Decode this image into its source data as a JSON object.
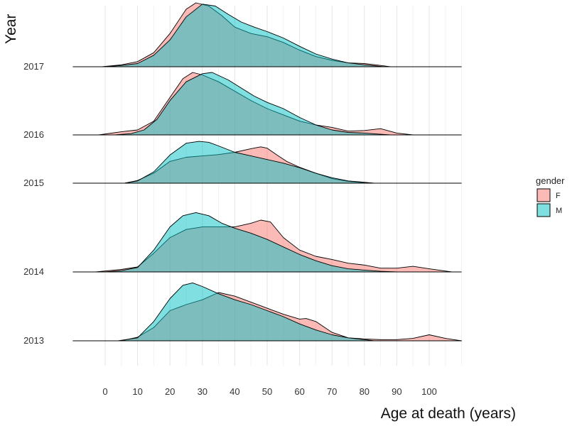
{
  "chart_data": {
    "type": "area",
    "subtype": "ridgeline-density",
    "xlabel": "Age at death (years)",
    "ylabel": "Year",
    "xlim": [
      -10,
      110
    ],
    "x_ticks": [
      0,
      10,
      20,
      30,
      40,
      50,
      60,
      70,
      80,
      90,
      100
    ],
    "grid": true,
    "legend": {
      "title": "gender",
      "position": "right"
    },
    "rows": [
      "2017",
      "2016",
      "2015",
      "2014",
      "2013"
    ],
    "series": [
      {
        "name": "F",
        "color": "#F8766D"
      },
      {
        "name": "M",
        "color": "#00BFC4"
      }
    ],
    "densities": {
      "2017": {
        "F": {
          "x": [
            -1,
            5,
            10,
            15,
            20,
            25,
            28,
            32,
            36,
            40,
            45,
            50,
            55,
            60,
            65,
            70,
            75,
            80,
            85,
            88
          ],
          "y": [
            0.0,
            0.03,
            0.08,
            0.22,
            0.52,
            0.9,
            1.0,
            0.95,
            0.8,
            0.62,
            0.52,
            0.47,
            0.38,
            0.26,
            0.16,
            0.1,
            0.06,
            0.05,
            0.02,
            0.0
          ]
        },
        "M": {
          "x": [
            0,
            5,
            10,
            15,
            20,
            25,
            30,
            34,
            38,
            42,
            46,
            50,
            55,
            60,
            65,
            70,
            75,
            80,
            86
          ],
          "y": [
            0.0,
            0.02,
            0.05,
            0.18,
            0.42,
            0.78,
            0.98,
            0.95,
            0.82,
            0.7,
            0.62,
            0.55,
            0.45,
            0.32,
            0.2,
            0.12,
            0.06,
            0.03,
            0.0
          ]
        }
      },
      "2016": {
        "F": {
          "x": [
            -2,
            5,
            10,
            15,
            20,
            24,
            27,
            30,
            35,
            40,
            45,
            50,
            55,
            60,
            65,
            70,
            75,
            80,
            85,
            90,
            95
          ],
          "y": [
            0.0,
            0.05,
            0.08,
            0.22,
            0.6,
            0.9,
            1.0,
            0.96,
            0.85,
            0.7,
            0.55,
            0.42,
            0.32,
            0.22,
            0.16,
            0.12,
            0.06,
            0.07,
            0.1,
            0.03,
            0.0
          ]
        },
        "M": {
          "x": [
            3,
            8,
            12,
            16,
            20,
            25,
            30,
            33,
            38,
            42,
            46,
            50,
            55,
            60,
            65,
            70,
            75,
            80,
            85,
            88
          ],
          "y": [
            0.0,
            0.02,
            0.08,
            0.25,
            0.55,
            0.85,
            0.98,
            1.0,
            0.88,
            0.75,
            0.62,
            0.52,
            0.42,
            0.28,
            0.16,
            0.08,
            0.04,
            0.03,
            0.01,
            0.0
          ]
        }
      },
      "2015": {
        "F": {
          "x": [
            6,
            10,
            15,
            20,
            25,
            30,
            35,
            40,
            45,
            48,
            50,
            53,
            56,
            60,
            65,
            70,
            75,
            80,
            83
          ],
          "y": [
            0.0,
            0.06,
            0.22,
            0.48,
            0.57,
            0.6,
            0.63,
            0.68,
            0.76,
            0.8,
            0.77,
            0.62,
            0.48,
            0.35,
            0.22,
            0.1,
            0.04,
            0.01,
            0.0
          ]
        },
        "M": {
          "x": [
            6,
            10,
            15,
            20,
            25,
            29,
            32,
            35,
            40,
            45,
            50,
            55,
            60,
            65,
            70,
            75,
            80,
            83
          ],
          "y": [
            0.0,
            0.05,
            0.25,
            0.62,
            0.88,
            0.92,
            0.9,
            0.82,
            0.68,
            0.6,
            0.52,
            0.44,
            0.34,
            0.22,
            0.12,
            0.05,
            0.02,
            0.0
          ]
        }
      },
      "2014": {
        "F": {
          "x": [
            -3,
            5,
            10,
            15,
            20,
            25,
            30,
            35,
            40,
            45,
            48,
            51,
            55,
            60,
            65,
            70,
            75,
            80,
            85,
            90,
            95,
            100,
            107
          ],
          "y": [
            0.0,
            0.04,
            0.08,
            0.3,
            0.55,
            0.68,
            0.72,
            0.72,
            0.72,
            0.78,
            0.83,
            0.8,
            0.55,
            0.35,
            0.25,
            0.2,
            0.14,
            0.11,
            0.06,
            0.06,
            0.09,
            0.05,
            0.0
          ]
        },
        "M": {
          "x": [
            0,
            5,
            10,
            15,
            20,
            24,
            28,
            32,
            36,
            40,
            45,
            50,
            55,
            60,
            65,
            70,
            75,
            80,
            85,
            90
          ],
          "y": [
            0.0,
            0.02,
            0.07,
            0.35,
            0.72,
            0.9,
            0.95,
            0.9,
            0.78,
            0.7,
            0.62,
            0.52,
            0.4,
            0.28,
            0.18,
            0.1,
            0.05,
            0.03,
            0.01,
            0.0
          ]
        }
      },
      "2013": {
        "F": {
          "x": [
            5,
            10,
            15,
            20,
            25,
            30,
            35,
            40,
            45,
            50,
            55,
            60,
            62,
            65,
            70,
            75,
            80,
            85,
            90,
            95,
            100,
            105,
            110
          ],
          "y": [
            0.0,
            0.06,
            0.22,
            0.5,
            0.6,
            0.68,
            0.8,
            0.74,
            0.64,
            0.54,
            0.44,
            0.36,
            0.37,
            0.32,
            0.14,
            0.05,
            0.03,
            0.02,
            0.02,
            0.04,
            0.1,
            0.04,
            0.0
          ]
        },
        "M": {
          "x": [
            4,
            10,
            15,
            20,
            24,
            27,
            30,
            35,
            40,
            45,
            50,
            55,
            60,
            65,
            70,
            75,
            80,
            83
          ],
          "y": [
            0.0,
            0.05,
            0.32,
            0.7,
            0.92,
            0.96,
            0.9,
            0.78,
            0.68,
            0.6,
            0.5,
            0.4,
            0.28,
            0.18,
            0.1,
            0.05,
            0.02,
            0.0
          ]
        }
      }
    }
  }
}
